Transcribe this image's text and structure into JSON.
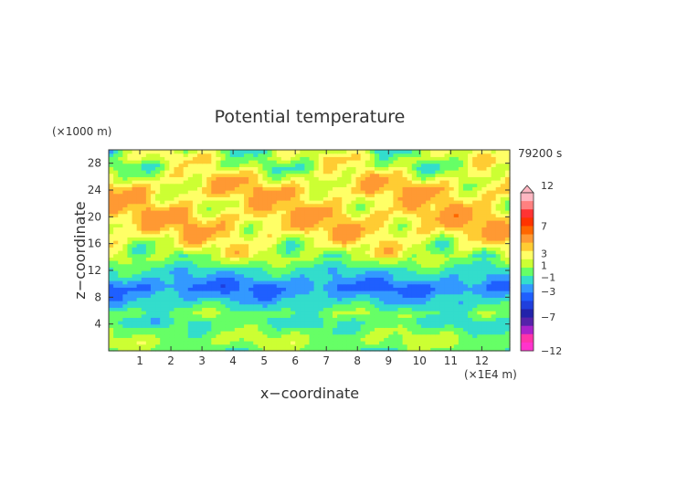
{
  "chart_data": {
    "type": "heatmap",
    "title": "Potential temperature",
    "time_label": "79200 s",
    "xlabel": "x−coordinate",
    "ylabel": "z−coordinate",
    "x_unit": "(×1E4 m)",
    "y_unit": "(×1000 m)",
    "xlim": [
      0,
      12.9
    ],
    "ylim": [
      0,
      30
    ],
    "x_ticks": [
      1,
      2,
      3,
      4,
      5,
      6,
      7,
      8,
      9,
      10,
      11,
      12
    ],
    "y_ticks": [
      4,
      8,
      12,
      16,
      20,
      24,
      28
    ],
    "colorbar": {
      "ticks": [
        "12",
        "7",
        "3",
        "1",
        "−1",
        "−3",
        "−7",
        "−12"
      ],
      "colors": [
        "#ffb6c1",
        "#ff8080",
        "#ff3333",
        "#ff3300",
        "#ff6600",
        "#ff9933",
        "#ffcc33",
        "#ffff66",
        "#ccff33",
        "#66ff66",
        "#33ddcc",
        "#3399ff",
        "#1f5fff",
        "#1f3fdd",
        "#2222aa",
        "#5522aa",
        "#aa22cc",
        "#ff33aa",
        "#ff33cc"
      ]
    },
    "z_profile": [
      {
        "z": 0,
        "value": -0.6
      },
      {
        "z": 1.5,
        "value": 0.2
      },
      {
        "z": 3,
        "value": -0.5
      },
      {
        "z": 4.5,
        "value": -1.2
      },
      {
        "z": 5.5,
        "value": -0.3
      },
      {
        "z": 7,
        "value": -1.5
      },
      {
        "z": 8,
        "value": -2.2
      },
      {
        "z": 9.5,
        "value": -3.2
      },
      {
        "z": 11,
        "value": -2.0
      },
      {
        "z": 12,
        "value": -1.5
      },
      {
        "z": 13,
        "value": -0.5
      },
      {
        "z": 14,
        "value": 0.3
      },
      {
        "z": 16,
        "value": 1.2
      },
      {
        "z": 18,
        "value": 2.2
      },
      {
        "z": 20,
        "value": 2.6
      },
      {
        "z": 22,
        "value": 2.0
      },
      {
        "z": 24,
        "value": 2.4
      },
      {
        "z": 26,
        "value": 1.5
      },
      {
        "z": 27.5,
        "value": 0.3
      },
      {
        "z": 29,
        "value": 0.8
      },
      {
        "z": 30,
        "value": 0.0
      }
    ]
  }
}
